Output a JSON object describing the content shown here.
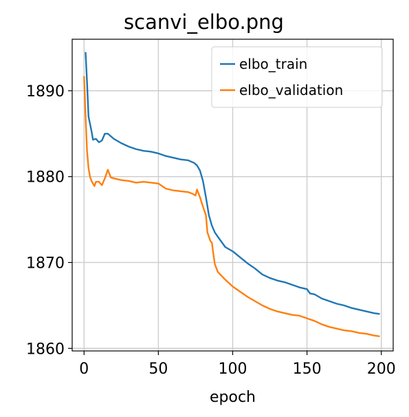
{
  "chart_data": {
    "type": "line",
    "title": "scanvi_elbo.png",
    "xlabel": "epoch",
    "ylabel": "",
    "xlim": [
      -8,
      208
    ],
    "ylim": [
      1859.7,
      1896.0
    ],
    "xticks": [
      0,
      50,
      100,
      150,
      200
    ],
    "yticks": [
      1860,
      1870,
      1880,
      1890
    ],
    "grid": true,
    "legend_position": "top-right",
    "series": [
      {
        "name": "elbo_train",
        "color": "#1f77b4",
        "x": [
          1,
          2,
          3,
          5,
          6,
          8,
          10,
          12,
          14,
          16,
          18,
          20,
          25,
          30,
          35,
          40,
          45,
          50,
          55,
          60,
          65,
          70,
          74,
          76,
          78,
          80,
          82,
          84,
          86,
          88,
          90,
          95,
          100,
          105,
          110,
          115,
          120,
          125,
          130,
          135,
          140,
          145,
          150,
          152,
          155,
          160,
          165,
          170,
          175,
          180,
          185,
          190,
          195,
          199
        ],
        "y": [
          1894.5,
          1891.0,
          1887.0,
          1885.3,
          1884.3,
          1884.4,
          1884.0,
          1884.2,
          1885.0,
          1885.0,
          1884.7,
          1884.4,
          1883.9,
          1883.5,
          1883.2,
          1883.0,
          1882.9,
          1882.7,
          1882.4,
          1882.2,
          1882.0,
          1881.9,
          1881.6,
          1881.3,
          1880.7,
          1879.5,
          1877.6,
          1875.5,
          1874.3,
          1873.5,
          1873.0,
          1871.8,
          1871.3,
          1870.6,
          1869.9,
          1869.3,
          1868.6,
          1868.2,
          1867.9,
          1867.7,
          1867.4,
          1867.1,
          1866.9,
          1866.4,
          1866.3,
          1865.8,
          1865.5,
          1865.2,
          1865.0,
          1864.7,
          1864.5,
          1864.3,
          1864.1,
          1864.0
        ]
      },
      {
        "name": "elbo_validation",
        "color": "#ff7f0e",
        "x": [
          0,
          1,
          2,
          3,
          4,
          5,
          6,
          7,
          8,
          10,
          12,
          14,
          16,
          18,
          20,
          25,
          30,
          35,
          40,
          45,
          50,
          55,
          60,
          65,
          70,
          73,
          75,
          76,
          78,
          80,
          82,
          83,
          85,
          86,
          87,
          88,
          90,
          95,
          100,
          105,
          110,
          115,
          120,
          125,
          130,
          135,
          140,
          145,
          150,
          155,
          160,
          165,
          170,
          175,
          180,
          185,
          190,
          195,
          199
        ],
        "y": [
          1891.7,
          1887.0,
          1883.0,
          1881.0,
          1880.0,
          1879.5,
          1879.2,
          1878.9,
          1879.4,
          1879.4,
          1879.0,
          1879.8,
          1880.8,
          1879.9,
          1879.8,
          1879.6,
          1879.5,
          1879.3,
          1879.4,
          1879.3,
          1879.2,
          1878.6,
          1878.4,
          1878.3,
          1878.2,
          1878.0,
          1877.8,
          1878.5,
          1877.6,
          1876.5,
          1875.5,
          1873.5,
          1872.5,
          1872.3,
          1871.0,
          1869.8,
          1868.9,
          1868.0,
          1867.2,
          1866.6,
          1866.0,
          1865.5,
          1865.0,
          1864.6,
          1864.3,
          1864.1,
          1863.9,
          1863.8,
          1863.5,
          1863.2,
          1862.8,
          1862.5,
          1862.3,
          1862.1,
          1862.0,
          1861.8,
          1861.7,
          1861.5,
          1861.4
        ]
      }
    ]
  }
}
